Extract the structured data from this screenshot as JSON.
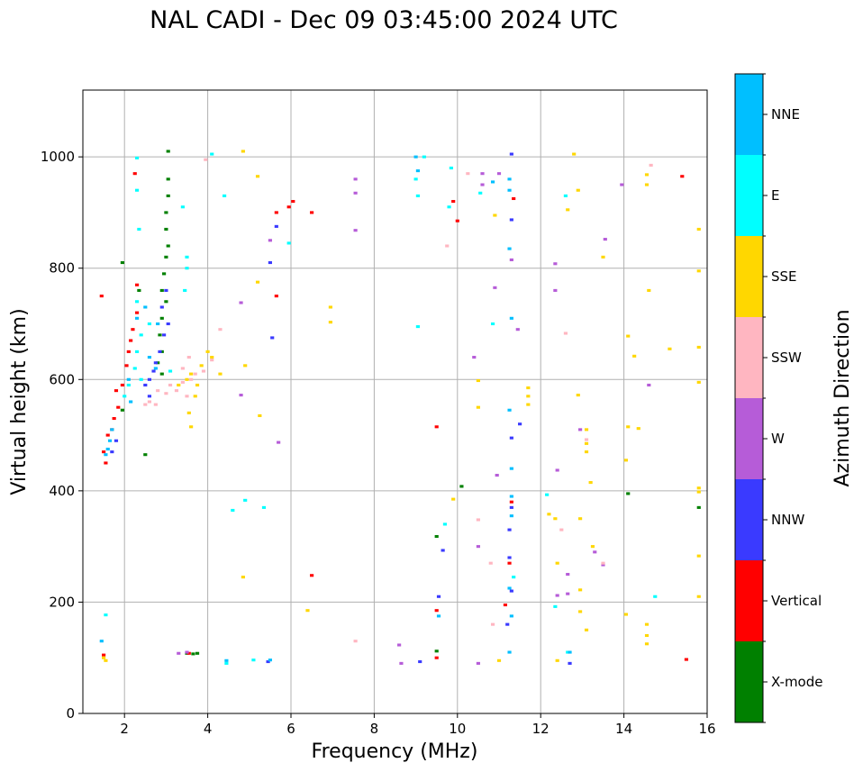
{
  "chart_data": {
    "type": "scatter",
    "title": "NAL CADI - Dec 09 03:45:00 2024 UTC",
    "xlabel": "Frequency (MHz)",
    "ylabel": "Virtual height (km)",
    "xlim": [
      1,
      16
    ],
    "ylim": [
      0,
      1120
    ],
    "xticks": [
      2,
      4,
      6,
      8,
      10,
      12,
      14,
      16
    ],
    "yticks": [
      0,
      200,
      400,
      600,
      800,
      1000
    ],
    "grid": true,
    "colorbar": {
      "title": "Azimuth Direction",
      "categories": [
        {
          "name": "X-mode",
          "color": "#008000"
        },
        {
          "name": "Vertical",
          "color": "#ff0000"
        },
        {
          "name": "NNW",
          "color": "#3a3aff"
        },
        {
          "name": "W",
          "color": "#b65cd8"
        },
        {
          "name": "SSW",
          "color": "#ffb6c1"
        },
        {
          "name": "SSE",
          "color": "#ffd700"
        },
        {
          "name": "E",
          "color": "#00ffff"
        },
        {
          "name": "NNE",
          "color": "#00bfff"
        }
      ]
    },
    "series": [
      {
        "name": "X-mode",
        "points": [
          [
            3.05,
            1010
          ],
          [
            3.05,
            960
          ],
          [
            3.05,
            930
          ],
          [
            3.0,
            900
          ],
          [
            3.0,
            870
          ],
          [
            3.05,
            840
          ],
          [
            3.0,
            820
          ],
          [
            2.95,
            790
          ],
          [
            2.9,
            760
          ],
          [
            3.0,
            740
          ],
          [
            2.9,
            710
          ],
          [
            2.85,
            680
          ],
          [
            2.9,
            650
          ],
          [
            2.8,
            630
          ],
          [
            2.9,
            610
          ],
          [
            1.95,
            810
          ],
          [
            3.5,
            108
          ],
          [
            3.65,
            107
          ],
          [
            3.75,
            108
          ],
          [
            9.5,
            112
          ],
          [
            9.5,
            318
          ],
          [
            10.1,
            408
          ],
          [
            14.1,
            395
          ],
          [
            15.8,
            370
          ],
          [
            2.35,
            760
          ],
          [
            1.95,
            545
          ],
          [
            2.5,
            465
          ]
        ]
      },
      {
        "name": "Vertical",
        "points": [
          [
            1.5,
            470
          ],
          [
            1.55,
            450
          ],
          [
            1.6,
            500
          ],
          [
            1.7,
            510
          ],
          [
            1.75,
            530
          ],
          [
            1.85,
            550
          ],
          [
            1.95,
            590
          ],
          [
            2.1,
            650
          ],
          [
            2.15,
            670
          ],
          [
            2.2,
            690
          ],
          [
            2.3,
            720
          ],
          [
            2.3,
            770
          ],
          [
            2.25,
            970
          ],
          [
            1.45,
            750
          ],
          [
            1.5,
            105
          ],
          [
            3.55,
            108
          ],
          [
            5.65,
            900
          ],
          [
            5.65,
            750
          ],
          [
            5.95,
            910
          ],
          [
            6.05,
            920
          ],
          [
            6.5,
            900
          ],
          [
            6.5,
            248
          ],
          [
            9.5,
            185
          ],
          [
            9.5,
            100
          ],
          [
            9.5,
            515
          ],
          [
            9.9,
            920
          ],
          [
            10.0,
            885
          ],
          [
            11.15,
            195
          ],
          [
            11.35,
            925
          ],
          [
            11.3,
            380
          ],
          [
            11.25,
            270
          ],
          [
            15.4,
            965
          ],
          [
            15.5,
            97
          ],
          [
            1.8,
            580
          ],
          [
            2.05,
            625
          ]
        ]
      },
      {
        "name": "NNW",
        "points": [
          [
            2.5,
            590
          ],
          [
            2.6,
            600
          ],
          [
            2.7,
            615
          ],
          [
            2.75,
            630
          ],
          [
            2.85,
            650
          ],
          [
            2.95,
            680
          ],
          [
            3.05,
            700
          ],
          [
            2.9,
            730
          ],
          [
            3.0,
            760
          ],
          [
            1.7,
            470
          ],
          [
            1.8,
            490
          ],
          [
            5.45,
            93
          ],
          [
            5.5,
            810
          ],
          [
            5.65,
            875
          ],
          [
            5.55,
            675
          ],
          [
            9.1,
            93
          ],
          [
            9.65,
            293
          ],
          [
            9.55,
            210
          ],
          [
            11.25,
            330
          ],
          [
            11.3,
            370
          ],
          [
            11.3,
            220
          ],
          [
            11.25,
            280
          ],
          [
            11.3,
            495
          ],
          [
            11.3,
            1005
          ],
          [
            11.3,
            887
          ],
          [
            11.5,
            520
          ],
          [
            12.7,
            90
          ],
          [
            11.2,
            160
          ],
          [
            2.6,
            570
          ]
        ]
      },
      {
        "name": "W",
        "points": [
          [
            3.3,
            108
          ],
          [
            3.5,
            110
          ],
          [
            8.6,
            123
          ],
          [
            8.65,
            90
          ],
          [
            10.5,
            300
          ],
          [
            10.5,
            90
          ],
          [
            10.6,
            970
          ],
          [
            10.6,
            950
          ],
          [
            10.9,
            765
          ],
          [
            10.95,
            428
          ],
          [
            11.0,
            970
          ],
          [
            11.3,
            815
          ],
          [
            11.45,
            690
          ],
          [
            12.35,
            808
          ],
          [
            12.35,
            760
          ],
          [
            12.4,
            437
          ],
          [
            12.4,
            212
          ],
          [
            12.65,
            250
          ],
          [
            12.65,
            215
          ],
          [
            12.95,
            510
          ],
          [
            13.3,
            290
          ],
          [
            13.55,
            852
          ],
          [
            13.95,
            950
          ],
          [
            14.6,
            590
          ],
          [
            4.8,
            572
          ],
          [
            4.8,
            738
          ],
          [
            5.5,
            850
          ],
          [
            7.55,
            960
          ],
          [
            7.55,
            935
          ],
          [
            7.55,
            868
          ],
          [
            10.4,
            640
          ],
          [
            13.5,
            267
          ],
          [
            5.7,
            487
          ]
        ]
      },
      {
        "name": "SSW",
        "points": [
          [
            2.5,
            555
          ],
          [
            2.6,
            560
          ],
          [
            2.8,
            580
          ],
          [
            3.0,
            575
          ],
          [
            3.1,
            590
          ],
          [
            3.25,
            580
          ],
          [
            3.4,
            595
          ],
          [
            3.5,
            570
          ],
          [
            3.6,
            600
          ],
          [
            3.7,
            610
          ],
          [
            3.4,
            620
          ],
          [
            3.55,
            640
          ],
          [
            3.9,
            615
          ],
          [
            3.95,
            995
          ],
          [
            4.1,
            635
          ],
          [
            4.3,
            690
          ],
          [
            7.55,
            130
          ],
          [
            9.75,
            840
          ],
          [
            10.25,
            970
          ],
          [
            10.5,
            348
          ],
          [
            10.8,
            270
          ],
          [
            10.85,
            160
          ],
          [
            12.5,
            330
          ],
          [
            12.6,
            683
          ],
          [
            13.1,
            492
          ],
          [
            13.5,
            270
          ],
          [
            14.65,
            985
          ],
          [
            2.75,
            555
          ]
        ]
      },
      {
        "name": "SSE",
        "points": [
          [
            1.5,
            100
          ],
          [
            1.55,
            95
          ],
          [
            3.3,
            590
          ],
          [
            3.5,
            600
          ],
          [
            3.6,
            610
          ],
          [
            3.75,
            590
          ],
          [
            3.7,
            570
          ],
          [
            3.85,
            625
          ],
          [
            4.0,
            650
          ],
          [
            4.1,
            640
          ],
          [
            3.55,
            540
          ],
          [
            3.6,
            515
          ],
          [
            4.3,
            610
          ],
          [
            4.9,
            625
          ],
          [
            4.85,
            1010
          ],
          [
            5.2,
            965
          ],
          [
            5.2,
            775
          ],
          [
            5.25,
            535
          ],
          [
            4.85,
            245
          ],
          [
            6.4,
            185
          ],
          [
            6.95,
            730
          ],
          [
            6.95,
            703
          ],
          [
            9.9,
            385
          ],
          [
            10.5,
            550
          ],
          [
            10.5,
            598
          ],
          [
            10.9,
            895
          ],
          [
            11.0,
            95
          ],
          [
            11.7,
            585
          ],
          [
            11.7,
            570
          ],
          [
            11.7,
            555
          ],
          [
            12.2,
            358
          ],
          [
            12.35,
            350
          ],
          [
            12.4,
            270
          ],
          [
            12.4,
            95
          ],
          [
            12.65,
            905
          ],
          [
            12.8,
            1005
          ],
          [
            12.9,
            940
          ],
          [
            12.9,
            572
          ],
          [
            12.95,
            350
          ],
          [
            13.1,
            510
          ],
          [
            13.1,
            485
          ],
          [
            13.1,
            470
          ],
          [
            13.2,
            415
          ],
          [
            13.25,
            300
          ],
          [
            12.95,
            222
          ],
          [
            12.95,
            183
          ],
          [
            13.1,
            150
          ],
          [
            13.5,
            820
          ],
          [
            14.1,
            678
          ],
          [
            14.1,
            515
          ],
          [
            14.05,
            455
          ],
          [
            14.05,
            178
          ],
          [
            14.25,
            642
          ],
          [
            14.35,
            512
          ],
          [
            14.6,
            760
          ],
          [
            14.55,
            968
          ],
          [
            14.55,
            950
          ],
          [
            14.55,
            160
          ],
          [
            14.55,
            140
          ],
          [
            14.55,
            125
          ],
          [
            15.1,
            655
          ],
          [
            15.8,
            870
          ],
          [
            15.8,
            795
          ],
          [
            15.8,
            658
          ],
          [
            15.8,
            595
          ],
          [
            15.8,
            405
          ],
          [
            15.8,
            398
          ],
          [
            15.8,
            283
          ],
          [
            15.8,
            210
          ]
        ]
      },
      {
        "name": "E",
        "points": [
          [
            2.0,
            570
          ],
          [
            2.1,
            590
          ],
          [
            2.25,
            620
          ],
          [
            2.3,
            650
          ],
          [
            2.4,
            680
          ],
          [
            2.3,
            740
          ],
          [
            2.35,
            870
          ],
          [
            2.3,
            940
          ],
          [
            2.4,
            600
          ],
          [
            2.6,
            700
          ],
          [
            3.1,
            615
          ],
          [
            3.4,
            910
          ],
          [
            3.45,
            760
          ],
          [
            3.5,
            820
          ],
          [
            3.5,
            800
          ],
          [
            4.1,
            1005
          ],
          [
            4.4,
            930
          ],
          [
            4.45,
            90
          ],
          [
            4.6,
            365
          ],
          [
            4.9,
            383
          ],
          [
            5.1,
            96
          ],
          [
            5.35,
            370
          ],
          [
            5.95,
            845
          ],
          [
            9.0,
            960
          ],
          [
            9.05,
            930
          ],
          [
            9.05,
            695
          ],
          [
            9.2,
            1000
          ],
          [
            9.7,
            340
          ],
          [
            9.8,
            910
          ],
          [
            9.85,
            980
          ],
          [
            10.55,
            935
          ],
          [
            10.85,
            700
          ],
          [
            11.35,
            245
          ],
          [
            12.15,
            393
          ],
          [
            12.35,
            192
          ],
          [
            12.6,
            930
          ],
          [
            12.65,
            110
          ],
          [
            14.75,
            210
          ],
          [
            1.55,
            177
          ],
          [
            2.3,
            998
          ]
        ]
      },
      {
        "name": "NNE",
        "points": [
          [
            1.55,
            465
          ],
          [
            1.6,
            475
          ],
          [
            1.65,
            490
          ],
          [
            1.7,
            510
          ],
          [
            2.15,
            560
          ],
          [
            2.3,
            710
          ],
          [
            2.1,
            600
          ],
          [
            2.6,
            640
          ],
          [
            2.75,
            620
          ],
          [
            2.5,
            730
          ],
          [
            2.8,
            700
          ],
          [
            4.45,
            95
          ],
          [
            5.5,
            96
          ],
          [
            9.0,
            1000
          ],
          [
            9.05,
            975
          ],
          [
            9.55,
            175
          ],
          [
            10.85,
            955
          ],
          [
            11.25,
            960
          ],
          [
            11.25,
            940
          ],
          [
            11.25,
            835
          ],
          [
            11.3,
            710
          ],
          [
            11.25,
            545
          ],
          [
            11.3,
            440
          ],
          [
            11.3,
            390
          ],
          [
            11.3,
            355
          ],
          [
            11.25,
            225
          ],
          [
            11.3,
            175
          ],
          [
            11.25,
            110
          ],
          [
            12.7,
            110
          ],
          [
            1.45,
            130
          ]
        ]
      }
    ]
  }
}
